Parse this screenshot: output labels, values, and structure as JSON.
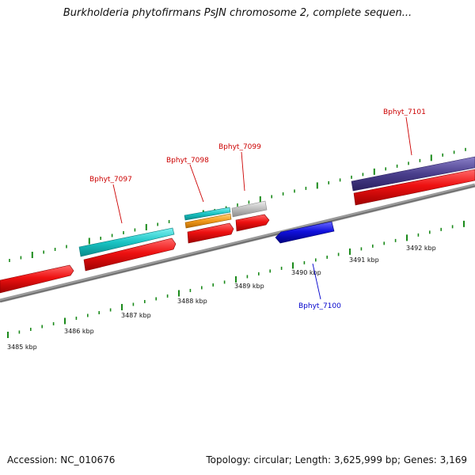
{
  "header": {
    "title": "Burkholderia phytofirmans PsJN chromosome 2, complete sequen..."
  },
  "footer": {
    "accession": "Accession: NC_010676",
    "summary": "Topology: circular; Length: 3,625,999 bp; Genes: 3,169"
  },
  "map": {
    "ruler_labels": [
      "3485 kbp",
      "3486 kbp",
      "3487 kbp",
      "3488 kbp",
      "3489 kbp",
      "3490 kbp",
      "3491 kbp",
      "3492 kbp"
    ],
    "genes": [
      {
        "id": "Bphyt_7097",
        "label": "Bphyt_7097",
        "strand": "forward",
        "color": "#cc0000"
      },
      {
        "id": "Bphyt_7098",
        "label": "Bphyt_7098",
        "strand": "forward",
        "color": "#cc0000"
      },
      {
        "id": "Bphyt_7099",
        "label": "Bphyt_7099",
        "strand": "forward",
        "color": "#cc0000"
      },
      {
        "id": "Bphyt_7100",
        "label": "Bphyt_7100",
        "strand": "reverse",
        "color": "#0000cc"
      },
      {
        "id": "Bphyt_7101",
        "label": "Bphyt_7101",
        "strand": "forward",
        "color": "#cc0000"
      }
    ],
    "colors": {
      "cds_forward": "#ee1111",
      "cds_reverse": "#1111dd",
      "feature_cyan": "#19c4c4",
      "feature_orange": "#f29a1c",
      "feature_gray": "#bdbdbd",
      "feature_purple": "#4a3f8c",
      "backbone": "#7a7a7a",
      "ticks": "#1a8a1a"
    }
  }
}
